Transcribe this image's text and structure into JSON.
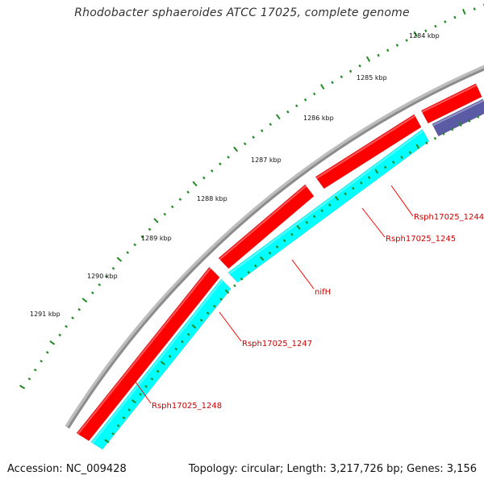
{
  "title": "Rhodobacter sphaeroides ATCC 17025, complete genome",
  "accession": "Accession: NC_009428",
  "summary": "Topology: circular; Length: 3,217,726 bp; Genes: 3,156",
  "colors": {
    "backbone": "#8c8c8c",
    "forward_gene": "#ff0000",
    "reverse_gene": "#00ffff",
    "pseudo_gene": "#c8c8c8",
    "nifH": "#5a5aa5",
    "small_gene": "#000099",
    "ticks": "#228b22",
    "label_lines": "#ff0000"
  },
  "kbp_marks": [
    {
      "label": "1284 kbp"
    },
    {
      "label": "1285 kbp"
    },
    {
      "label": "1286 kbp"
    },
    {
      "label": "1287 kbp"
    },
    {
      "label": "1288 kbp"
    },
    {
      "label": "1289 kbp"
    },
    {
      "label": "1290 kbp"
    },
    {
      "label": "1291 kbp"
    }
  ],
  "gene_labels": [
    {
      "name": "Rsph17025_1244"
    },
    {
      "name": "Rsph17025_1245"
    },
    {
      "name": "nifH"
    },
    {
      "name": "Rsph17025_1247"
    },
    {
      "name": "Rsph17025_1248"
    }
  ]
}
